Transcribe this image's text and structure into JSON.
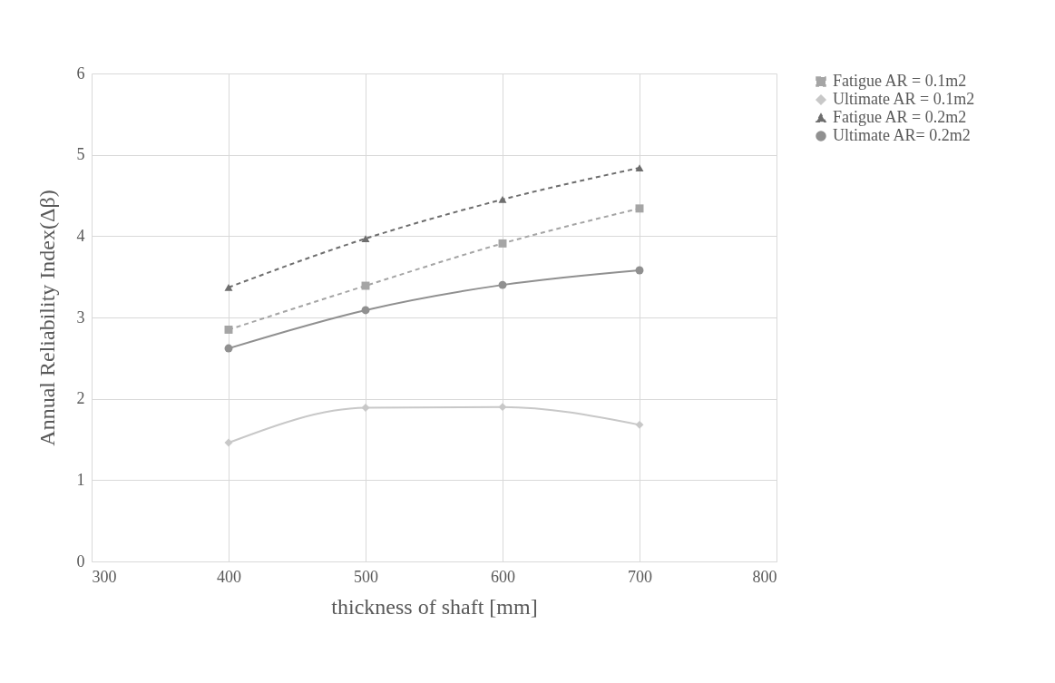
{
  "chart_data": {
    "type": "line",
    "xlabel": "thickness of shaft [mm]",
    "ylabel": "Annual Reliability Index(Δβ)",
    "x": [
      400,
      500,
      600,
      700
    ],
    "series": [
      {
        "name": "Fatigue AR = 0.1m2",
        "color": "#a5a5a5",
        "marker": "square",
        "line_style": "dashed",
        "values": [
          2.85,
          3.39,
          3.91,
          4.34
        ]
      },
      {
        "name": "Ultimate AR = 0.1m2",
        "color": "#c8c8c8",
        "marker": "diamond",
        "line_style": "solid",
        "values": [
          1.46,
          1.89,
          1.9,
          1.68
        ]
      },
      {
        "name": "Fatigue AR = 0.2m2",
        "color": "#6e6e6e",
        "marker": "triangle",
        "line_style": "dashed",
        "values": [
          3.37,
          3.97,
          4.45,
          4.84
        ]
      },
      {
        "name": "Ultimate AR= 0.2m2",
        "color": "#909090",
        "marker": "circle",
        "line_style": "solid",
        "values": [
          2.62,
          3.09,
          3.4,
          3.58
        ]
      }
    ],
    "xlim": [
      300,
      800
    ],
    "xticks": [
      300,
      400,
      500,
      600,
      700,
      800
    ],
    "ylim": [
      0,
      6
    ],
    "yticks": [
      0,
      1,
      2,
      3,
      4,
      5,
      6
    ],
    "grid": true,
    "legend": "right"
  }
}
